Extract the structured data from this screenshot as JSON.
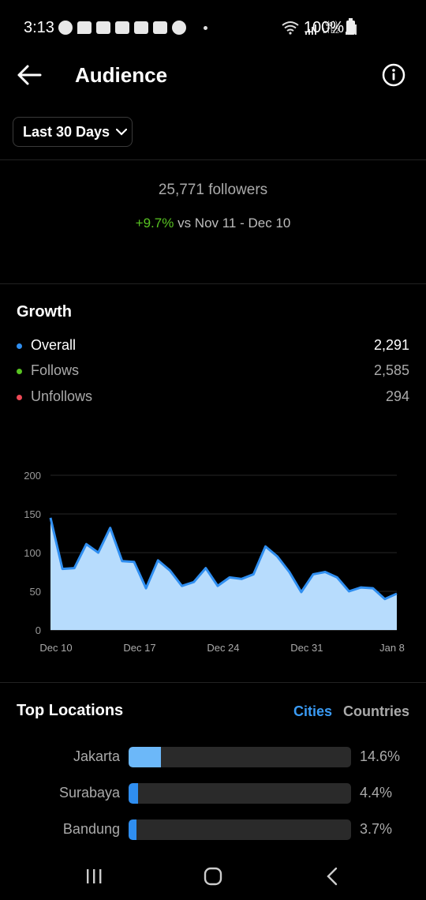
{
  "status_bar": {
    "time": "3:13",
    "battery": "100%",
    "network": "LTE2",
    "volte": "Vo))",
    "notification_icons": [
      "whatsapp-icon",
      "chat-icon",
      "youtube-icon",
      "youtube-icon",
      "youtube-icon",
      "youtube-icon",
      "google-icon"
    ]
  },
  "header": {
    "title": "Audience"
  },
  "date_range": {
    "label": "Last 30 Days"
  },
  "summary": {
    "followers": "25,771 followers",
    "change": "+9.7%",
    "compare_text": "vs Nov 11 - Dec 10"
  },
  "growth": {
    "title": "Growth",
    "legend": [
      {
        "label": "Overall",
        "value": "2,291",
        "color": "#2f8ef0"
      },
      {
        "label": "Follows",
        "value": "2,585",
        "color": "#58c322"
      },
      {
        "label": "Unfollows",
        "value": "294",
        "color": "#ed4956"
      }
    ]
  },
  "chart_data": {
    "type": "area",
    "y_ticks": [
      "200",
      "150",
      "100",
      "50",
      "0"
    ],
    "ylim": [
      0,
      200
    ],
    "x_tick_labels": [
      "Dec 10",
      "Dec 17",
      "Dec 24",
      "Dec 31",
      "Jan 8"
    ],
    "x_tick_index": [
      0,
      7,
      14,
      21,
      29
    ],
    "grid": true,
    "series": [
      {
        "values": [
          145,
          79,
          80,
          111,
          100,
          132,
          89,
          88,
          54,
          90,
          77,
          57,
          62,
          80,
          57,
          68,
          66,
          72,
          108,
          95,
          75,
          49,
          72,
          75,
          68,
          50,
          55,
          54,
          40,
          47
        ],
        "line_color": "#2f8ef0",
        "fill_color": "#b7dcfd"
      }
    ]
  },
  "locations": {
    "title": "Top Locations",
    "tabs": [
      "Cities",
      "Countries"
    ],
    "active_tab": "Cities",
    "rows": [
      {
        "name": "Jakarta",
        "percent_label": "14.6%",
        "share": 0.146,
        "color": "#6cb8f9"
      },
      {
        "name": "Surabaya",
        "percent_label": "4.4%",
        "share": 0.044,
        "color": "#2f8ef0"
      },
      {
        "name": "Bandung",
        "percent_label": "3.7%",
        "share": 0.037,
        "color": "#2f8ef0"
      }
    ]
  },
  "nav": {
    "icons": [
      "recent-apps-icon",
      "home-icon",
      "back-nav-icon"
    ]
  }
}
